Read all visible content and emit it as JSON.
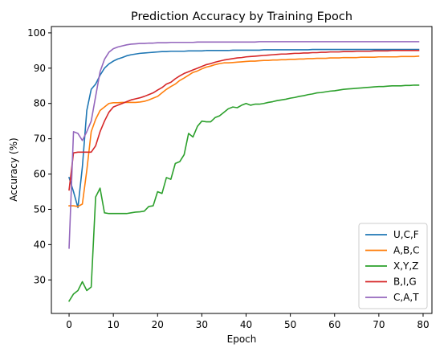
{
  "chart_data": {
    "type": "line",
    "title": "Prediction Accuracy by Training Epoch",
    "xlabel": "Epoch",
    "ylabel": "Accuracy (%)",
    "xlim": [
      -4,
      82
    ],
    "ylim": [
      20.5,
      101.8
    ],
    "xticks": [
      0,
      10,
      20,
      30,
      40,
      50,
      60,
      70,
      80
    ],
    "yticks": [
      30,
      40,
      50,
      60,
      70,
      80,
      90,
      100
    ],
    "grid": false,
    "legend_position": "bottom-right",
    "x": [
      0,
      1,
      2,
      3,
      4,
      5,
      6,
      7,
      8,
      9,
      10,
      11,
      12,
      13,
      14,
      15,
      16,
      17,
      18,
      19,
      20,
      21,
      22,
      23,
      24,
      25,
      26,
      27,
      28,
      29,
      30,
      31,
      32,
      33,
      34,
      35,
      36,
      37,
      38,
      39,
      40,
      41,
      42,
      43,
      44,
      45,
      46,
      47,
      48,
      49,
      50,
      51,
      52,
      53,
      54,
      55,
      56,
      57,
      58,
      59,
      60,
      61,
      62,
      63,
      64,
      65,
      66,
      67,
      68,
      69,
      70,
      71,
      72,
      73,
      74,
      75,
      76,
      77,
      78,
      79
    ],
    "series": [
      {
        "name": "U,C,F",
        "color": "#1f77b4",
        "values": [
          59.0,
          55.0,
          50.5,
          62.0,
          78.0,
          84.0,
          85.5,
          88.0,
          90.0,
          91.2,
          92.0,
          92.6,
          93.0,
          93.5,
          93.8,
          94.0,
          94.2,
          94.3,
          94.4,
          94.5,
          94.6,
          94.7,
          94.7,
          94.8,
          94.8,
          94.8,
          94.8,
          94.9,
          94.9,
          94.9,
          94.9,
          95.0,
          95.0,
          95.0,
          95.0,
          95.0,
          95.0,
          95.1,
          95.1,
          95.1,
          95.1,
          95.1,
          95.1,
          95.1,
          95.2,
          95.2,
          95.2,
          95.2,
          95.2,
          95.2,
          95.2,
          95.2,
          95.2,
          95.2,
          95.2,
          95.3,
          95.3,
          95.3,
          95.3,
          95.3,
          95.3,
          95.3,
          95.3,
          95.3,
          95.3,
          95.3,
          95.3,
          95.3,
          95.3,
          95.3,
          95.3,
          95.3,
          95.3,
          95.3,
          95.3,
          95.3,
          95.3,
          95.3,
          95.3,
          95.3
        ]
      },
      {
        "name": "A,B,C",
        "color": "#ff7f0e",
        "values": [
          51.0,
          51.0,
          50.8,
          51.5,
          61.0,
          72.0,
          75.5,
          78.0,
          79.0,
          80.0,
          80.2,
          80.2,
          80.3,
          80.3,
          80.3,
          80.3,
          80.4,
          80.6,
          81.0,
          81.5,
          82.0,
          83.0,
          84.0,
          84.8,
          85.5,
          86.5,
          87.2,
          88.0,
          88.8,
          89.2,
          89.8,
          90.3,
          90.6,
          91.0,
          91.3,
          91.5,
          91.5,
          91.6,
          91.7,
          91.8,
          91.9,
          92.0,
          92.0,
          92.1,
          92.2,
          92.2,
          92.3,
          92.3,
          92.4,
          92.4,
          92.5,
          92.5,
          92.6,
          92.6,
          92.7,
          92.7,
          92.8,
          92.8,
          92.8,
          92.9,
          92.9,
          92.9,
          93.0,
          93.0,
          93.0,
          93.0,
          93.1,
          93.1,
          93.1,
          93.1,
          93.2,
          93.2,
          93.2,
          93.2,
          93.2,
          93.3,
          93.3,
          93.3,
          93.3,
          93.4
        ]
      },
      {
        "name": "X,Y,Z",
        "color": "#2ca02c",
        "values": [
          24.0,
          26.0,
          27.0,
          29.5,
          27.0,
          28.0,
          53.5,
          56.0,
          49.0,
          48.8,
          48.8,
          48.8,
          48.8,
          48.8,
          49.0,
          49.2,
          49.3,
          49.5,
          50.8,
          51.0,
          55.0,
          54.5,
          59.0,
          58.5,
          63.0,
          63.5,
          65.5,
          71.5,
          70.5,
          73.5,
          75.0,
          74.8,
          74.8,
          76.0,
          76.5,
          77.5,
          78.5,
          79.0,
          78.8,
          79.5,
          80.0,
          79.5,
          79.8,
          79.8,
          80.0,
          80.3,
          80.5,
          80.8,
          81.0,
          81.2,
          81.5,
          81.7,
          82.0,
          82.2,
          82.5,
          82.7,
          83.0,
          83.1,
          83.3,
          83.5,
          83.6,
          83.8,
          84.0,
          84.1,
          84.2,
          84.3,
          84.4,
          84.5,
          84.6,
          84.7,
          84.8,
          84.8,
          84.9,
          85.0,
          85.0,
          85.0,
          85.1,
          85.1,
          85.2,
          85.2
        ]
      },
      {
        "name": "B,I,G",
        "color": "#d62728",
        "values": [
          55.5,
          66.0,
          66.2,
          66.2,
          66.2,
          66.2,
          68.0,
          72.0,
          75.0,
          77.5,
          79.0,
          79.5,
          80.0,
          80.5,
          81.0,
          81.3,
          81.6,
          82.0,
          82.5,
          83.0,
          83.8,
          84.5,
          85.5,
          86.0,
          87.0,
          87.8,
          88.5,
          89.0,
          89.5,
          90.0,
          90.5,
          91.0,
          91.3,
          91.7,
          92.0,
          92.3,
          92.5,
          92.7,
          92.9,
          93.0,
          93.2,
          93.3,
          93.4,
          93.5,
          93.6,
          93.7,
          93.8,
          93.9,
          94.0,
          94.0,
          94.1,
          94.2,
          94.2,
          94.3,
          94.3,
          94.4,
          94.4,
          94.5,
          94.5,
          94.6,
          94.6,
          94.6,
          94.7,
          94.7,
          94.7,
          94.8,
          94.8,
          94.8,
          94.8,
          94.9,
          94.9,
          94.9,
          94.9,
          95.0,
          95.0,
          95.0,
          95.0,
          95.0,
          95.0,
          95.0
        ]
      },
      {
        "name": "C,A,T",
        "color": "#9467bd",
        "values": [
          39.0,
          72.0,
          71.5,
          69.5,
          72.0,
          75.0,
          82.0,
          89.0,
          92.5,
          94.5,
          95.5,
          96.0,
          96.3,
          96.6,
          96.8,
          96.9,
          97.0,
          97.0,
          97.1,
          97.1,
          97.2,
          97.2,
          97.2,
          97.3,
          97.3,
          97.3,
          97.3,
          97.3,
          97.3,
          97.4,
          97.4,
          97.4,
          97.4,
          97.4,
          97.4,
          97.4,
          97.4,
          97.4,
          97.4,
          97.4,
          97.4,
          97.4,
          97.4,
          97.5,
          97.5,
          97.5,
          97.5,
          97.5,
          97.5,
          97.5,
          97.5,
          97.5,
          97.5,
          97.5,
          97.5,
          97.5,
          97.5,
          97.5,
          97.5,
          97.5,
          97.5,
          97.5,
          97.5,
          97.5,
          97.5,
          97.5,
          97.5,
          97.5,
          97.5,
          97.5,
          97.5,
          97.5,
          97.5,
          97.5,
          97.5,
          97.5,
          97.5,
          97.5,
          97.5,
          97.5
        ]
      }
    ]
  }
}
